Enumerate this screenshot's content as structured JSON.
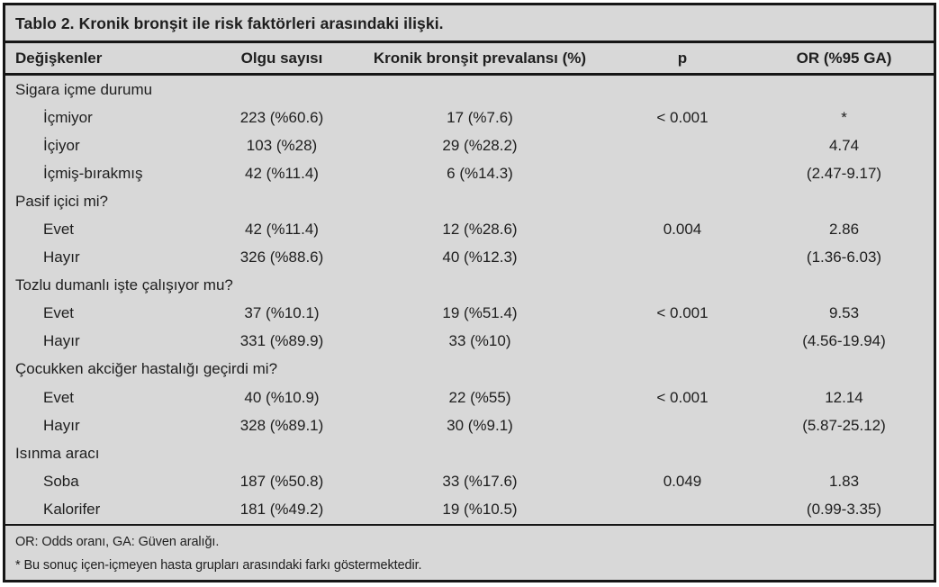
{
  "colors": {
    "table_background": "#d8d8d8",
    "rule_and_border": "#161616",
    "text": "#1e1e1e",
    "page_background": "#ffffff"
  },
  "table": {
    "title": "Tablo 2. Kronik bronşit ile risk faktörleri arasındaki ilişki.",
    "columns": [
      "Değişkenler",
      "Olgu sayısı",
      "Kronik bronşit prevalansı (%)",
      "p",
      "OR (%95 GA)"
    ],
    "rows": [
      {
        "type": "group",
        "label": "Sigara içme durumu",
        "olgu": "",
        "prevalans": "",
        "p": "",
        "or": ""
      },
      {
        "type": "data",
        "label": "İçmiyor",
        "olgu": "223 (%60.6)",
        "prevalans": "17 (%7.6)",
        "p": "< 0.001",
        "or": "*"
      },
      {
        "type": "data",
        "label": "İçiyor",
        "olgu": "103 (%28)",
        "prevalans": "29 (%28.2)",
        "p": "",
        "or": "4.74"
      },
      {
        "type": "data",
        "label": "İçmiş-bırakmış",
        "olgu": "42 (%11.4)",
        "prevalans": "6 (%14.3)",
        "p": "",
        "or": "(2.47-9.17)"
      },
      {
        "type": "group",
        "label": "Pasif içici mi?",
        "olgu": "",
        "prevalans": "",
        "p": "",
        "or": ""
      },
      {
        "type": "data",
        "label": "Evet",
        "olgu": "42 (%11.4)",
        "prevalans": "12 (%28.6)",
        "p": "0.004",
        "or": "2.86"
      },
      {
        "type": "data",
        "label": "Hayır",
        "olgu": "326 (%88.6)",
        "prevalans": "40 (%12.3)",
        "p": "",
        "or": "(1.36-6.03)"
      },
      {
        "type": "group",
        "label": "Tozlu dumanlı işte çalışıyor mu?",
        "olgu": "",
        "prevalans": "",
        "p": "",
        "or": ""
      },
      {
        "type": "data",
        "label": "Evet",
        "olgu": "37 (%10.1)",
        "prevalans": "19 (%51.4)",
        "p": "< 0.001",
        "or": "9.53"
      },
      {
        "type": "data",
        "label": "Hayır",
        "olgu": "331 (%89.9)",
        "prevalans": "33 (%10)",
        "p": "",
        "or": "(4.56-19.94)"
      },
      {
        "type": "group",
        "label": "Çocukken akciğer hastalığı geçirdi mi?",
        "olgu": "",
        "prevalans": "",
        "p": "",
        "or": ""
      },
      {
        "type": "data",
        "label": "Evet",
        "olgu": "40 (%10.9)",
        "prevalans": "22 (%55)",
        "p": "< 0.001",
        "or": "12.14"
      },
      {
        "type": "data",
        "label": "Hayır",
        "olgu": "328 (%89.1)",
        "prevalans": "30 (%9.1)",
        "p": "",
        "or": "(5.87-25.12)"
      },
      {
        "type": "group",
        "label": "Isınma aracı",
        "olgu": "",
        "prevalans": "",
        "p": "",
        "or": ""
      },
      {
        "type": "data",
        "label": "Soba",
        "olgu": "187 (%50.8)",
        "prevalans": "33 (%17.6)",
        "p": "0.049",
        "or": "1.83"
      },
      {
        "type": "data",
        "label": "Kalorifer",
        "olgu": "181 (%49.2)",
        "prevalans": "19 (%10.5)",
        "p": "",
        "or": "(0.99-3.35)"
      }
    ],
    "footnotes": [
      "OR: Odds oranı, GA: Güven aralığı.",
      "* Bu sonuç içen-içmeyen hasta grupları arasındaki farkı göstermektedir."
    ]
  }
}
